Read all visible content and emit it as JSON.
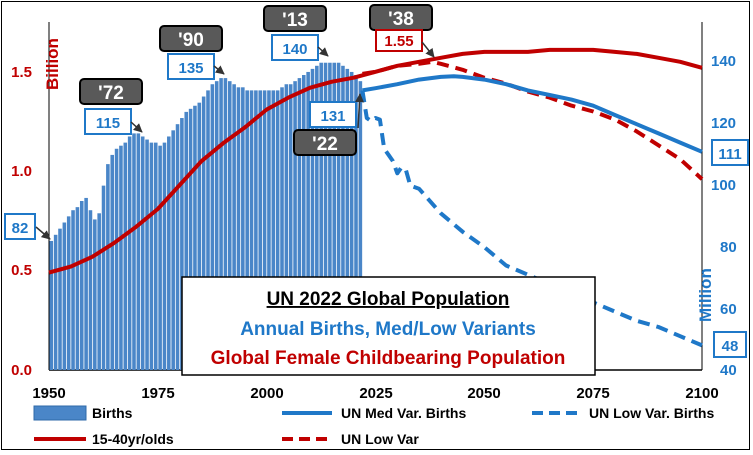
{
  "chart_data": {
    "type": "bar",
    "title": "UN 2022 Global Population",
    "subtitle_blue": "Annual Births, Med/Low Variants",
    "subtitle_red": "Global Female Childbearing Population",
    "left_axis": {
      "label": "Billion",
      "ylim": [
        0,
        1.7
      ],
      "ticks": [
        "0.0",
        "0.5",
        "1.0",
        "1.5"
      ],
      "color": "#c00000"
    },
    "right_axis": {
      "label": "Million",
      "ylim": [
        40,
        150
      ],
      "ticks": [
        "40",
        "60",
        "80",
        "100",
        "120",
        "140"
      ],
      "color": "#1f78c8"
    },
    "x_axis": {
      "xlim": [
        1950,
        2100
      ],
      "ticks": [
        "1950",
        "1975",
        "2000",
        "2025",
        "2050",
        "2075",
        "2100"
      ]
    },
    "legend": [
      {
        "label": "Births",
        "style": "bar",
        "color": "#4a86c8"
      },
      {
        "label": "UN Med Var. Births",
        "style": "solid",
        "color": "#1f78c8"
      },
      {
        "label": "UN Low Var. Births",
        "style": "dashed",
        "color": "#1f78c8"
      },
      {
        "label": "15-40yr/olds",
        "style": "solid",
        "color": "#c00000"
      },
      {
        "label": "UN Low Var",
        "style": "dashed",
        "color": "#c00000"
      }
    ],
    "births": {
      "years": [
        1950,
        1951,
        1952,
        1953,
        1954,
        1955,
        1956,
        1957,
        1958,
        1959,
        1960,
        1961,
        1962,
        1963,
        1964,
        1965,
        1966,
        1967,
        1968,
        1969,
        1970,
        1971,
        1972,
        1973,
        1974,
        1975,
        1976,
        1977,
        1978,
        1979,
        1980,
        1981,
        1982,
        1983,
        1984,
        1985,
        1986,
        1987,
        1988,
        1989,
        1990,
        1991,
        1992,
        1993,
        1994,
        1995,
        1996,
        1997,
        1998,
        1999,
        2000,
        2001,
        2002,
        2003,
        2004,
        2005,
        2006,
        2007,
        2008,
        2009,
        2010,
        2011,
        2012,
        2013,
        2014,
        2015,
        2016,
        2017,
        2018,
        2019,
        2020,
        2021
      ],
      "values": [
        82,
        84,
        86,
        88,
        90,
        92,
        93,
        95,
        96,
        92,
        89,
        91,
        100,
        107,
        110,
        112,
        113,
        114,
        116,
        117,
        117,
        116,
        115,
        114,
        114,
        113,
        114,
        116,
        118,
        120,
        122,
        124,
        125,
        126,
        127,
        129,
        131,
        133,
        134,
        135,
        135,
        134,
        133,
        132,
        132,
        131,
        131,
        131,
        131,
        131,
        131,
        131,
        131,
        132,
        133,
        133,
        134,
        135,
        136,
        137,
        138,
        139,
        140,
        140,
        140,
        140,
        140,
        139,
        138,
        137,
        136,
        134
      ],
      "color": "#4a86c8"
    },
    "med_births": {
      "x": [
        2022,
        2025,
        2030,
        2035,
        2040,
        2043,
        2045,
        2050,
        2055,
        2060,
        2065,
        2070,
        2075,
        2080,
        2085,
        2090,
        2095,
        2100
      ],
      "y": [
        131,
        131.7,
        133,
        134.5,
        135.4,
        135.6,
        135.4,
        134.5,
        133,
        131,
        129.5,
        128,
        126,
        123,
        120,
        117,
        114,
        111
      ],
      "color": "#1f78c8"
    },
    "low_births": {
      "x": [
        2022,
        2023,
        2024,
        2025,
        2026,
        2027,
        2028,
        2029,
        2030,
        2031,
        2032,
        2033,
        2035,
        2040,
        2045,
        2050,
        2055,
        2060,
        2065,
        2070,
        2075,
        2080,
        2085,
        2090,
        2095,
        2100
      ],
      "y": [
        131,
        122,
        121,
        122,
        121.5,
        112,
        110,
        108,
        104,
        106,
        105,
        100,
        99,
        91,
        85,
        80,
        74,
        71,
        68,
        64,
        62,
        59,
        56,
        54,
        51,
        48
      ],
      "color": "#1f78c8"
    },
    "females": {
      "x": [
        1950,
        1955,
        1960,
        1965,
        1970,
        1975,
        1980,
        1985,
        1990,
        1995,
        2000,
        2005,
        2010,
        2015,
        2020,
        2025,
        2030,
        2035,
        2040,
        2045,
        2050,
        2055,
        2060,
        2065,
        2070,
        2075,
        2080,
        2085,
        2090,
        2095,
        2100
      ],
      "y": [
        0.49,
        0.52,
        0.57,
        0.64,
        0.72,
        0.81,
        0.93,
        1.05,
        1.14,
        1.22,
        1.31,
        1.37,
        1.42,
        1.45,
        1.47,
        1.5,
        1.53,
        1.55,
        1.57,
        1.59,
        1.6,
        1.6,
        1.6,
        1.61,
        1.61,
        1.61,
        1.6,
        1.59,
        1.57,
        1.55,
        1.52
      ],
      "color": "#c00000"
    },
    "females_low": {
      "x": [
        2022,
        2025,
        2030,
        2035,
        2038,
        2040,
        2045,
        2050,
        2055,
        2060,
        2065,
        2070,
        2075,
        2080,
        2085,
        2090,
        2095,
        2100
      ],
      "y": [
        1.49,
        1.5,
        1.53,
        1.54,
        1.55,
        1.54,
        1.51,
        1.47,
        1.44,
        1.4,
        1.37,
        1.33,
        1.3,
        1.26,
        1.2,
        1.13,
        1.06,
        0.96
      ],
      "color": "#c00000"
    },
    "callouts": [
      {
        "year_label": "'72",
        "value_label": "115"
      },
      {
        "year_label": "'90",
        "value_label": "135"
      },
      {
        "year_label": "'13",
        "value_label": "140"
      },
      {
        "year_label": "'38",
        "value_label": "1.55"
      },
      {
        "year_label": "'22",
        "value_label": "131"
      },
      {
        "value_label": "82"
      },
      {
        "value_label": "111"
      },
      {
        "value_label": "48"
      }
    ]
  }
}
